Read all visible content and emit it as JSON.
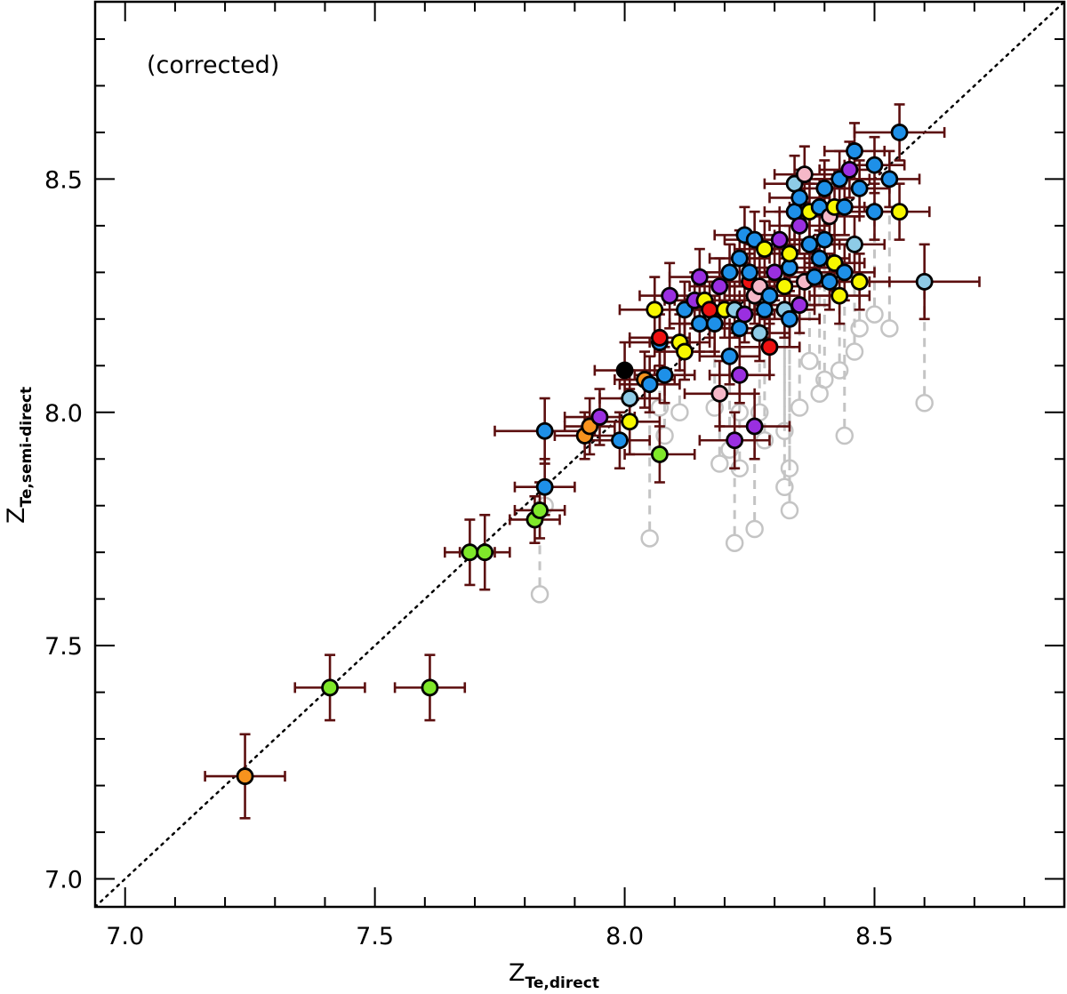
{
  "chart_data": {
    "type": "scatter",
    "annotation": "(corrected)",
    "xlabel": {
      "main": "Z",
      "sub": "Te,direct"
    },
    "ylabel": {
      "main": "Z",
      "sub": "Te,semi-direct"
    },
    "xlim": [
      6.94,
      8.88
    ],
    "ylim": [
      6.94,
      8.88
    ],
    "x_ticks": [
      "7.0",
      "7.5",
      "8.0",
      "8.5"
    ],
    "y_ticks": [
      "7.0",
      "7.5",
      "8.0",
      "8.5"
    ],
    "x_tick_values": [
      7.0,
      7.5,
      8.0,
      8.5
    ],
    "y_tick_values": [
      7.0,
      7.5,
      8.0,
      8.5
    ],
    "minor_step": 0.1,
    "reference_line": {
      "style": "dotted",
      "slope": 1,
      "intercept": 0
    },
    "colors": {
      "errorbar": "#5c0f0f",
      "uncorrected": "#c4c4c4",
      "outline": "#000000",
      "green": "#7fe82a",
      "orange": "#f7931e",
      "blue": "#1e90e8",
      "lightblue": "#8ecbe6",
      "purple": "#9a2fe0",
      "yellow": "#f7f700",
      "pink": "#f5b8c8",
      "red": "#ee1111",
      "black": "#000000"
    },
    "points": [
      {
        "x": 7.24,
        "y": 7.22,
        "xerr": 0.08,
        "yerr": 0.09,
        "c": "orange",
        "oy": 7.22
      },
      {
        "x": 7.41,
        "y": 7.41,
        "xerr": 0.07,
        "yerr": 0.07,
        "c": "green",
        "oy": 7.41
      },
      {
        "x": 7.61,
        "y": 7.41,
        "xerr": 0.07,
        "yerr": 0.07,
        "c": "green",
        "oy": 7.41
      },
      {
        "x": 7.69,
        "y": 7.7,
        "xerr": 0.05,
        "yerr": 0.07,
        "c": "green",
        "oy": 7.7
      },
      {
        "x": 7.72,
        "y": 7.7,
        "xerr": 0.05,
        "yerr": 0.08,
        "c": "green",
        "oy": 7.7
      },
      {
        "x": 7.82,
        "y": 7.77,
        "xerr": 0.05,
        "yerr": 0.05,
        "c": "green",
        "oy": 7.77
      },
      {
        "x": 7.83,
        "y": 7.79,
        "xerr": 0.05,
        "yerr": 0.06,
        "c": "green",
        "oy": 7.61
      },
      {
        "x": 7.84,
        "y": 7.84,
        "xerr": 0.06,
        "yerr": 0.06,
        "c": "blue",
        "oy": 7.8
      },
      {
        "x": 7.84,
        "y": 7.96,
        "xerr": 0.1,
        "yerr": 0.07,
        "c": "blue",
        "oy": 7.96
      },
      {
        "x": 7.92,
        "y": 7.95,
        "xerr": 0.06,
        "yerr": 0.05,
        "c": "orange",
        "oy": 7.95
      },
      {
        "x": 7.93,
        "y": 7.97,
        "xerr": 0.05,
        "yerr": 0.06,
        "c": "orange",
        "oy": 7.97
      },
      {
        "x": 7.95,
        "y": 7.99,
        "xerr": 0.07,
        "yerr": 0.06,
        "c": "purple",
        "oy": 7.99
      },
      {
        "x": 7.99,
        "y": 7.94,
        "xerr": 0.06,
        "yerr": 0.06,
        "c": "blue",
        "oy": 7.94
      },
      {
        "x": 8.0,
        "y": 8.09,
        "xerr": 0.06,
        "yerr": 0.06,
        "c": "black",
        "oy": 8.09
      },
      {
        "x": 8.01,
        "y": 8.03,
        "xerr": 0.06,
        "yerr": 0.06,
        "c": "lightblue",
        "oy": 8.03
      },
      {
        "x": 8.01,
        "y": 7.98,
        "xerr": 0.06,
        "yerr": 0.07,
        "c": "yellow",
        "oy": 7.98
      },
      {
        "x": 8.04,
        "y": 8.07,
        "xerr": 0.06,
        "yerr": 0.06,
        "c": "orange",
        "oy": 8.07
      },
      {
        "x": 8.05,
        "y": 8.06,
        "xerr": 0.06,
        "yerr": 0.06,
        "c": "blue",
        "oy": 7.73
      },
      {
        "x": 8.06,
        "y": 8.22,
        "xerr": 0.07,
        "yerr": 0.07,
        "c": "yellow",
        "oy": 8.22
      },
      {
        "x": 8.07,
        "y": 7.91,
        "xerr": 0.07,
        "yerr": 0.06,
        "c": "green",
        "oy": 7.91
      },
      {
        "x": 8.07,
        "y": 8.15,
        "xerr": 0.06,
        "yerr": 0.06,
        "c": "blue",
        "oy": 8.01
      },
      {
        "x": 8.07,
        "y": 8.16,
        "xerr": 0.06,
        "yerr": 0.06,
        "c": "red",
        "oy": 8.16
      },
      {
        "x": 8.08,
        "y": 8.08,
        "xerr": 0.06,
        "yerr": 0.06,
        "c": "blue",
        "oy": 7.95
      },
      {
        "x": 8.09,
        "y": 8.25,
        "xerr": 0.06,
        "yerr": 0.07,
        "c": "purple",
        "oy": 8.25
      },
      {
        "x": 8.11,
        "y": 8.15,
        "xerr": 0.06,
        "yerr": 0.06,
        "c": "yellow",
        "oy": 8.0
      },
      {
        "x": 8.12,
        "y": 8.13,
        "xerr": 0.06,
        "yerr": 0.06,
        "c": "yellow",
        "oy": 8.13
      },
      {
        "x": 8.12,
        "y": 8.22,
        "xerr": 0.06,
        "yerr": 0.06,
        "c": "blue",
        "oy": 8.22
      },
      {
        "x": 8.14,
        "y": 8.24,
        "xerr": 0.06,
        "yerr": 0.06,
        "c": "purple",
        "oy": 8.24
      },
      {
        "x": 8.15,
        "y": 8.29,
        "xerr": 0.06,
        "yerr": 0.06,
        "c": "purple",
        "oy": 8.29
      },
      {
        "x": 8.15,
        "y": 8.19,
        "xerr": 0.06,
        "yerr": 0.06,
        "c": "blue",
        "oy": 8.19
      },
      {
        "x": 8.16,
        "y": 8.24,
        "xerr": 0.06,
        "yerr": 0.06,
        "c": "yellow",
        "oy": 8.24
      },
      {
        "x": 8.17,
        "y": 8.22,
        "xerr": 0.06,
        "yerr": 0.06,
        "c": "red",
        "oy": 8.22
      },
      {
        "x": 8.18,
        "y": 8.19,
        "xerr": 0.06,
        "yerr": 0.06,
        "c": "blue",
        "oy": 8.01
      },
      {
        "x": 8.19,
        "y": 8.04,
        "xerr": 0.07,
        "yerr": 0.07,
        "c": "pink",
        "oy": 7.89
      },
      {
        "x": 8.19,
        "y": 8.27,
        "xerr": 0.06,
        "yerr": 0.06,
        "c": "purple",
        "oy": 8.27
      },
      {
        "x": 8.2,
        "y": 8.22,
        "xerr": 0.06,
        "yerr": 0.06,
        "c": "yellow",
        "oy": 8.22
      },
      {
        "x": 8.21,
        "y": 8.12,
        "xerr": 0.06,
        "yerr": 0.06,
        "c": "blue",
        "oy": 7.92
      },
      {
        "x": 8.21,
        "y": 8.3,
        "xerr": 0.06,
        "yerr": 0.06,
        "c": "blue",
        "oy": 8.3
      },
      {
        "x": 8.22,
        "y": 7.94,
        "xerr": 0.07,
        "yerr": 0.06,
        "c": "purple",
        "oy": 7.72
      },
      {
        "x": 8.22,
        "y": 8.22,
        "xerr": 0.06,
        "yerr": 0.06,
        "c": "lightblue",
        "oy": 8.22
      },
      {
        "x": 8.23,
        "y": 8.08,
        "xerr": 0.06,
        "yerr": 0.06,
        "c": "purple",
        "oy": 7.88
      },
      {
        "x": 8.23,
        "y": 8.18,
        "xerr": 0.06,
        "yerr": 0.06,
        "c": "blue",
        "oy": 8.0
      },
      {
        "x": 8.23,
        "y": 8.33,
        "xerr": 0.06,
        "yerr": 0.06,
        "c": "blue",
        "oy": 8.33
      },
      {
        "x": 8.24,
        "y": 8.21,
        "xerr": 0.06,
        "yerr": 0.06,
        "c": "purple",
        "oy": 8.21
      },
      {
        "x": 8.24,
        "y": 8.38,
        "xerr": 0.06,
        "yerr": 0.06,
        "c": "blue",
        "oy": 8.38
      },
      {
        "x": 8.25,
        "y": 8.28,
        "xerr": 0.06,
        "yerr": 0.06,
        "c": "red",
        "oy": 8.28
      },
      {
        "x": 8.25,
        "y": 8.3,
        "xerr": 0.06,
        "yerr": 0.06,
        "c": "blue",
        "oy": 8.3
      },
      {
        "x": 8.26,
        "y": 7.97,
        "xerr": 0.07,
        "yerr": 0.07,
        "c": "purple",
        "oy": 7.75
      },
      {
        "x": 8.26,
        "y": 8.25,
        "xerr": 0.06,
        "yerr": 0.06,
        "c": "pink",
        "oy": 8.25
      },
      {
        "x": 8.26,
        "y": 8.37,
        "xerr": 0.06,
        "yerr": 0.06,
        "c": "blue",
        "oy": 8.37
      },
      {
        "x": 8.27,
        "y": 8.17,
        "xerr": 0.06,
        "yerr": 0.06,
        "c": "lightblue",
        "oy": 8.0
      },
      {
        "x": 8.27,
        "y": 8.27,
        "xerr": 0.06,
        "yerr": 0.06,
        "c": "pink",
        "oy": 8.27
      },
      {
        "x": 8.28,
        "y": 8.35,
        "xerr": 0.06,
        "yerr": 0.06,
        "c": "yellow",
        "oy": 8.35
      },
      {
        "x": 8.28,
        "y": 8.22,
        "xerr": 0.06,
        "yerr": 0.06,
        "c": "blue",
        "oy": 7.94
      },
      {
        "x": 8.29,
        "y": 8.14,
        "xerr": 0.06,
        "yerr": 0.06,
        "c": "red",
        "oy": 8.14
      },
      {
        "x": 8.29,
        "y": 8.25,
        "xerr": 0.06,
        "yerr": 0.06,
        "c": "blue",
        "oy": 8.25
      },
      {
        "x": 8.3,
        "y": 8.3,
        "xerr": 0.06,
        "yerr": 0.06,
        "c": "purple",
        "oy": 8.3
      },
      {
        "x": 8.31,
        "y": 8.37,
        "xerr": 0.06,
        "yerr": 0.06,
        "c": "purple",
        "oy": 8.37
      },
      {
        "x": 8.32,
        "y": 8.22,
        "xerr": 0.06,
        "yerr": 0.06,
        "c": "lightblue",
        "oy": 7.84
      },
      {
        "x": 8.32,
        "y": 8.27,
        "xerr": 0.06,
        "yerr": 0.06,
        "c": "yellow",
        "oy": 7.96
      },
      {
        "x": 8.33,
        "y": 8.2,
        "xerr": 0.06,
        "yerr": 0.06,
        "c": "blue",
        "oy": 7.79
      },
      {
        "x": 8.33,
        "y": 8.31,
        "xerr": 0.06,
        "yerr": 0.06,
        "c": "blue",
        "oy": 7.88
      },
      {
        "x": 8.33,
        "y": 8.34,
        "xerr": 0.06,
        "yerr": 0.06,
        "c": "yellow",
        "oy": 8.34
      },
      {
        "x": 8.34,
        "y": 8.43,
        "xerr": 0.06,
        "yerr": 0.06,
        "c": "blue",
        "oy": 8.43
      },
      {
        "x": 8.34,
        "y": 8.49,
        "xerr": 0.06,
        "yerr": 0.06,
        "c": "lightblue",
        "oy": 8.49
      },
      {
        "x": 8.35,
        "y": 8.23,
        "xerr": 0.06,
        "yerr": 0.06,
        "c": "purple",
        "oy": 8.01
      },
      {
        "x": 8.35,
        "y": 8.4,
        "xerr": 0.06,
        "yerr": 0.06,
        "c": "purple",
        "oy": 8.4
      },
      {
        "x": 8.35,
        "y": 8.46,
        "xerr": 0.06,
        "yerr": 0.06,
        "c": "blue",
        "oy": 8.46
      },
      {
        "x": 8.36,
        "y": 8.28,
        "xerr": 0.06,
        "yerr": 0.06,
        "c": "pink",
        "oy": 8.28
      },
      {
        "x": 8.36,
        "y": 8.51,
        "xerr": 0.06,
        "yerr": 0.06,
        "c": "pink",
        "oy": 8.51
      },
      {
        "x": 8.37,
        "y": 8.43,
        "xerr": 0.06,
        "yerr": 0.06,
        "c": "yellow",
        "oy": 8.43
      },
      {
        "x": 8.37,
        "y": 8.36,
        "xerr": 0.06,
        "yerr": 0.06,
        "c": "blue",
        "oy": 8.11
      },
      {
        "x": 8.38,
        "y": 8.29,
        "xerr": 0.06,
        "yerr": 0.06,
        "c": "blue",
        "oy": 8.29
      },
      {
        "x": 8.39,
        "y": 8.44,
        "xerr": 0.06,
        "yerr": 0.06,
        "c": "blue",
        "oy": 8.44
      },
      {
        "x": 8.39,
        "y": 8.33,
        "xerr": 0.06,
        "yerr": 0.06,
        "c": "blue",
        "oy": 8.04
      },
      {
        "x": 8.4,
        "y": 8.37,
        "xerr": 0.06,
        "yerr": 0.06,
        "c": "blue",
        "oy": 8.07
      },
      {
        "x": 8.4,
        "y": 8.48,
        "xerr": 0.06,
        "yerr": 0.06,
        "c": "blue",
        "oy": 8.48
      },
      {
        "x": 8.41,
        "y": 8.28,
        "xerr": 0.06,
        "yerr": 0.06,
        "c": "blue",
        "oy": 8.28
      },
      {
        "x": 8.41,
        "y": 8.42,
        "xerr": 0.06,
        "yerr": 0.06,
        "c": "pink",
        "oy": 8.42
      },
      {
        "x": 8.42,
        "y": 8.44,
        "xerr": 0.06,
        "yerr": 0.06,
        "c": "yellow",
        "oy": 8.44
      },
      {
        "x": 8.42,
        "y": 8.32,
        "xerr": 0.06,
        "yerr": 0.06,
        "c": "yellow",
        "oy": 8.32
      },
      {
        "x": 8.43,
        "y": 8.25,
        "xerr": 0.06,
        "yerr": 0.06,
        "c": "yellow",
        "oy": 8.09
      },
      {
        "x": 8.43,
        "y": 8.5,
        "xerr": 0.06,
        "yerr": 0.06,
        "c": "blue",
        "oy": 8.5
      },
      {
        "x": 8.44,
        "y": 8.3,
        "xerr": 0.06,
        "yerr": 0.06,
        "c": "blue",
        "oy": 7.95
      },
      {
        "x": 8.44,
        "y": 8.44,
        "xerr": 0.06,
        "yerr": 0.06,
        "c": "blue",
        "oy": 8.44
      },
      {
        "x": 8.45,
        "y": 8.52,
        "xerr": 0.06,
        "yerr": 0.06,
        "c": "purple",
        "oy": 8.52
      },
      {
        "x": 8.46,
        "y": 8.36,
        "xerr": 0.06,
        "yerr": 0.06,
        "c": "lightblue",
        "oy": 8.13
      },
      {
        "x": 8.46,
        "y": 8.56,
        "xerr": 0.06,
        "yerr": 0.06,
        "c": "blue",
        "oy": 8.56
      },
      {
        "x": 8.47,
        "y": 8.28,
        "xerr": 0.06,
        "yerr": 0.06,
        "c": "yellow",
        "oy": 8.18
      },
      {
        "x": 8.47,
        "y": 8.48,
        "xerr": 0.06,
        "yerr": 0.06,
        "c": "blue",
        "oy": 8.48
      },
      {
        "x": 8.5,
        "y": 8.43,
        "xerr": 0.06,
        "yerr": 0.06,
        "c": "blue",
        "oy": 8.21
      },
      {
        "x": 8.5,
        "y": 8.53,
        "xerr": 0.06,
        "yerr": 0.06,
        "c": "blue",
        "oy": 8.53
      },
      {
        "x": 8.53,
        "y": 8.5,
        "xerr": 0.06,
        "yerr": 0.06,
        "c": "blue",
        "oy": 8.18
      },
      {
        "x": 8.55,
        "y": 8.43,
        "xerr": 0.06,
        "yerr": 0.06,
        "c": "yellow",
        "oy": 8.43
      },
      {
        "x": 8.55,
        "y": 8.6,
        "xerr": 0.09,
        "yerr": 0.06,
        "c": "blue",
        "oy": 8.6
      },
      {
        "x": 8.6,
        "y": 8.28,
        "xerr": 0.11,
        "yerr": 0.08,
        "c": "lightblue",
        "oy": 8.02
      }
    ]
  }
}
